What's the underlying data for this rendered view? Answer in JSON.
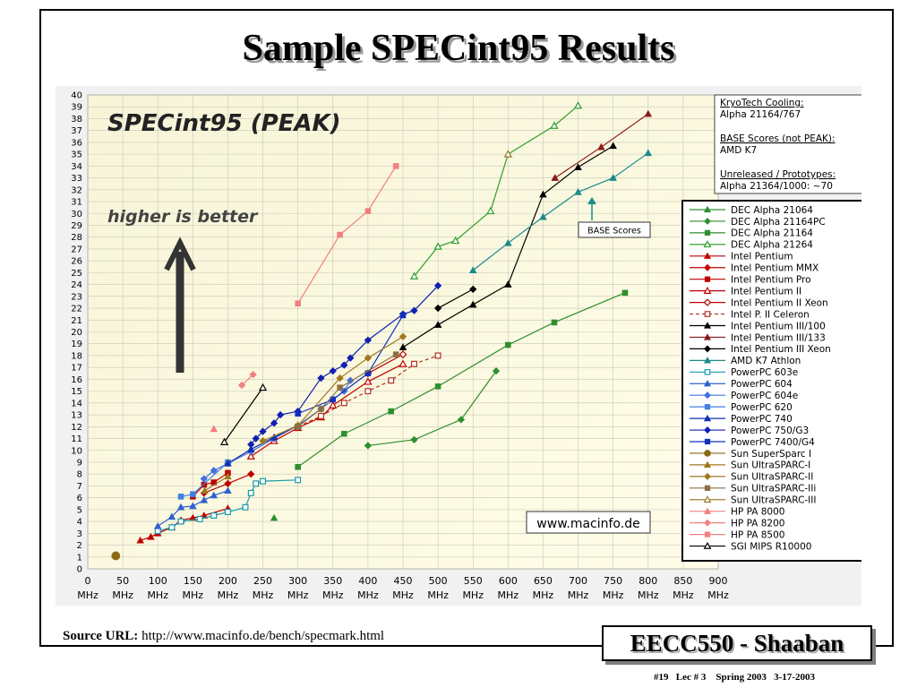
{
  "slide": {
    "title": "Sample SPECint95 Results",
    "source_label": "Source URL:",
    "source_url": "http://www.macinfo.de/bench/specmark.html",
    "course": "EECC550 - Shaaban",
    "footer": "#19   Lec # 3    Spring 2003   3-17-2003"
  },
  "chart_data": {
    "type": "line",
    "title": "SPECint95 (PEAK)",
    "annotation": "higher is better",
    "watermark": "www.macinfo.de",
    "base_callout": "BASE Scores",
    "xlabel": "",
    "ylabel": "",
    "x_unit": "MHz",
    "xlim": [
      0,
      900
    ],
    "ylim": [
      0,
      40
    ],
    "x_ticks": [
      0,
      50,
      100,
      150,
      200,
      250,
      300,
      350,
      400,
      450,
      500,
      550,
      600,
      650,
      700,
      750,
      800,
      850,
      900
    ],
    "y_ticks": [
      0,
      1,
      2,
      3,
      4,
      5,
      6,
      7,
      8,
      9,
      10,
      11,
      12,
      13,
      14,
      15,
      16,
      17,
      18,
      19,
      20,
      21,
      22,
      23,
      24,
      25,
      26,
      27,
      28,
      29,
      30,
      31,
      32,
      33,
      34,
      35,
      36,
      37,
      38,
      39,
      40
    ],
    "grid": true,
    "legend_position": "right",
    "notes_box": [
      {
        "heading": "KryoTech Cooling:",
        "text": "Alpha 21164/767"
      },
      {
        "heading": "BASE Scores (not PEAK):",
        "text": "AMD K7"
      },
      {
        "heading": "Unreleased / Prototypes:",
        "text": "Alpha 21364/1000: ~70"
      }
    ],
    "series": [
      {
        "name": "DEC Alpha 21064",
        "color": "#2f8f2f",
        "marker": "triangle",
        "x": [
          266
        ],
        "y": [
          4.3
        ]
      },
      {
        "name": "DEC Alpha 21164PC",
        "color": "#2f8f2f",
        "marker": "diamond",
        "x": [
          400,
          466,
          533,
          583
        ],
        "y": [
          10.4,
          10.9,
          12.6,
          16.7
        ]
      },
      {
        "name": "DEC Alpha 21164",
        "color": "#2f8f2f",
        "marker": "square",
        "x": [
          300,
          366,
          433,
          500,
          600,
          666,
          767
        ],
        "y": [
          8.6,
          11.4,
          13.3,
          15.4,
          18.9,
          20.8,
          23.3
        ]
      },
      {
        "name": "DEC Alpha 21264",
        "color": "#2f9f2f",
        "marker": "triangle-open",
        "x": [
          466,
          500,
          525,
          575,
          600,
          666,
          700
        ],
        "y": [
          24.7,
          27.2,
          27.7,
          30.2,
          35.0,
          37.4,
          39.1
        ]
      },
      {
        "name": "Intel Pentium",
        "color": "#c00000",
        "marker": "triangle",
        "x": [
          75,
          90,
          100,
          120,
          133,
          150,
          166,
          200
        ],
        "y": [
          2.4,
          2.7,
          3.0,
          3.5,
          4.1,
          4.3,
          4.5,
          5.1
        ]
      },
      {
        "name": "Intel Pentium MMX",
        "color": "#c00000",
        "marker": "diamond",
        "x": [
          166,
          200,
          233
        ],
        "y": [
          6.4,
          7.2,
          8.0
        ]
      },
      {
        "name": "Intel Pentium Pro",
        "color": "#c00000",
        "marker": "square",
        "x": [
          150,
          166,
          180,
          200
        ],
        "y": [
          6.1,
          7.1,
          7.3,
          8.1
        ]
      },
      {
        "name": "Intel Pentium II",
        "color": "#c00000",
        "marker": "triangle-open",
        "x": [
          233,
          266,
          300,
          333,
          350,
          400,
          450
        ],
        "y": [
          9.5,
          10.8,
          11.9,
          12.8,
          13.8,
          15.8,
          17.3
        ]
      },
      {
        "name": "Intel Pentium II Xeon",
        "color": "#c00000",
        "marker": "diamond-open",
        "x": [
          400,
          450
        ],
        "y": [
          16.5,
          18.1
        ]
      },
      {
        "name": "Intel P. II Celeron",
        "color": "#b03020",
        "marker": "square-open",
        "dashed": true,
        "x": [
          300,
          333,
          366,
          400,
          433,
          466,
          500
        ],
        "y": [
          12.0,
          12.9,
          14.0,
          15.0,
          15.9,
          17.3,
          18.0
        ]
      },
      {
        "name": "Intel Pentium III/100",
        "color": "#000000",
        "marker": "triangle",
        "x": [
          450,
          500,
          550,
          600,
          650,
          700,
          750
        ],
        "y": [
          18.7,
          20.6,
          22.3,
          24.0,
          31.6,
          33.9,
          35.7
        ]
      },
      {
        "name": "Intel Pentium III/133",
        "color": "#8b1a1a",
        "marker": "triangle",
        "x": [
          667,
          733,
          800
        ],
        "y": [
          33.0,
          35.6,
          38.4
        ]
      },
      {
        "name": "Intel Pentium III Xeon",
        "color": "#000000",
        "marker": "diamond",
        "x": [
          500,
          550
        ],
        "y": [
          22.0,
          23.6
        ]
      },
      {
        "name": "AMD K7 Athlon",
        "color": "#1a8a8a",
        "marker": "triangle",
        "x": [
          550,
          600,
          650,
          700,
          750,
          800
        ],
        "y": [
          25.2,
          27.5,
          29.7,
          31.8,
          33.0,
          35.1
        ]
      },
      {
        "name": "PowerPC 603e",
        "color": "#1a9aaa",
        "marker": "square-open",
        "x": [
          100,
          120,
          133,
          160,
          180,
          200,
          225,
          233,
          240,
          250,
          300
        ],
        "y": [
          3.2,
          3.5,
          4.0,
          4.2,
          4.5,
          4.8,
          5.2,
          6.4,
          7.2,
          7.4,
          7.5
        ]
      },
      {
        "name": "PowerPC 604",
        "color": "#3060d0",
        "marker": "triangle",
        "x": [
          100,
          120,
          133,
          150,
          166,
          180,
          200
        ],
        "y": [
          3.6,
          4.4,
          5.2,
          5.3,
          5.8,
          6.2,
          6.6
        ]
      },
      {
        "name": "PowerPC 604e",
        "color": "#4070e0",
        "marker": "diamond",
        "x": [
          166,
          180,
          200,
          233,
          266,
          300,
          333,
          366,
          375
        ],
        "y": [
          7.6,
          8.3,
          8.9,
          9.9,
          11.0,
          12.1,
          13.5,
          15.0,
          15.9
        ]
      },
      {
        "name": "PowerPC 620",
        "color": "#4080e0",
        "marker": "square",
        "x": [
          133,
          150,
          200
        ],
        "y": [
          6.1,
          6.3,
          9.0
        ]
      },
      {
        "name": "PowerPC 740",
        "color": "#1030b0",
        "marker": "triangle",
        "x": [
          200,
          233,
          266,
          300
        ],
        "y": [
          8.9,
          10.1,
          11.1,
          12.1
        ]
      },
      {
        "name": "PowerPC 750/G3",
        "color": "#1020b0",
        "marker": "diamond",
        "x": [
          233,
          240,
          250,
          266,
          275,
          300,
          333,
          350,
          366,
          375,
          400,
          450,
          466,
          500
        ],
        "y": [
          10.5,
          11.0,
          11.6,
          12.3,
          13.0,
          13.3,
          16.1,
          16.7,
          17.2,
          17.8,
          19.3,
          21.5,
          21.8,
          23.9
        ]
      },
      {
        "name": "PowerPC 7400/G4",
        "color": "#1030c0",
        "marker": "square",
        "x": [
          300,
          350,
          400,
          450
        ],
        "y": [
          13.1,
          14.3,
          16.5,
          21.4
        ]
      },
      {
        "name": "Sun SuperSparc I",
        "color": "#8b6914",
        "marker": "circle",
        "x": [
          40
        ],
        "y": [
          1.1
        ]
      },
      {
        "name": "Sun UltraSPARC-I",
        "color": "#a07820",
        "marker": "triangle",
        "x": [
          167,
          200
        ],
        "y": [
          6.6,
          7.8
        ]
      },
      {
        "name": "Sun UltraSPARC-II",
        "color": "#a07820",
        "marker": "diamond",
        "x": [
          250,
          300,
          360,
          400,
          450
        ],
        "y": [
          10.8,
          12.1,
          16.1,
          17.8,
          19.6
        ]
      },
      {
        "name": "Sun UltraSPARC-IIi",
        "color": "#8b7040",
        "marker": "square",
        "x": [
          300,
          333,
          360,
          440
        ],
        "y": [
          12.0,
          13.5,
          15.3,
          18.1
        ]
      },
      {
        "name": "Sun UltraSPARC-III",
        "color": "#a08030",
        "marker": "triangle-open",
        "x": [
          600
        ],
        "y": [
          35.0
        ]
      },
      {
        "name": "HP PA 8000",
        "color": "#f08080",
        "marker": "triangle",
        "x": [
          180
        ],
        "y": [
          11.8
        ]
      },
      {
        "name": "HP PA 8200",
        "color": "#f08080",
        "marker": "diamond",
        "x": [
          220,
          236
        ],
        "y": [
          15.5,
          16.4
        ]
      },
      {
        "name": "HP PA 8500",
        "color": "#f08080",
        "marker": "square",
        "x": [
          300,
          360,
          400,
          440
        ],
        "y": [
          22.4,
          28.2,
          30.2,
          34.0
        ]
      },
      {
        "name": "SGI MIPS R10000",
        "color": "#000000",
        "marker": "triangle-open",
        "x": [
          195,
          250
        ],
        "y": [
          10.7,
          15.3
        ]
      }
    ]
  }
}
